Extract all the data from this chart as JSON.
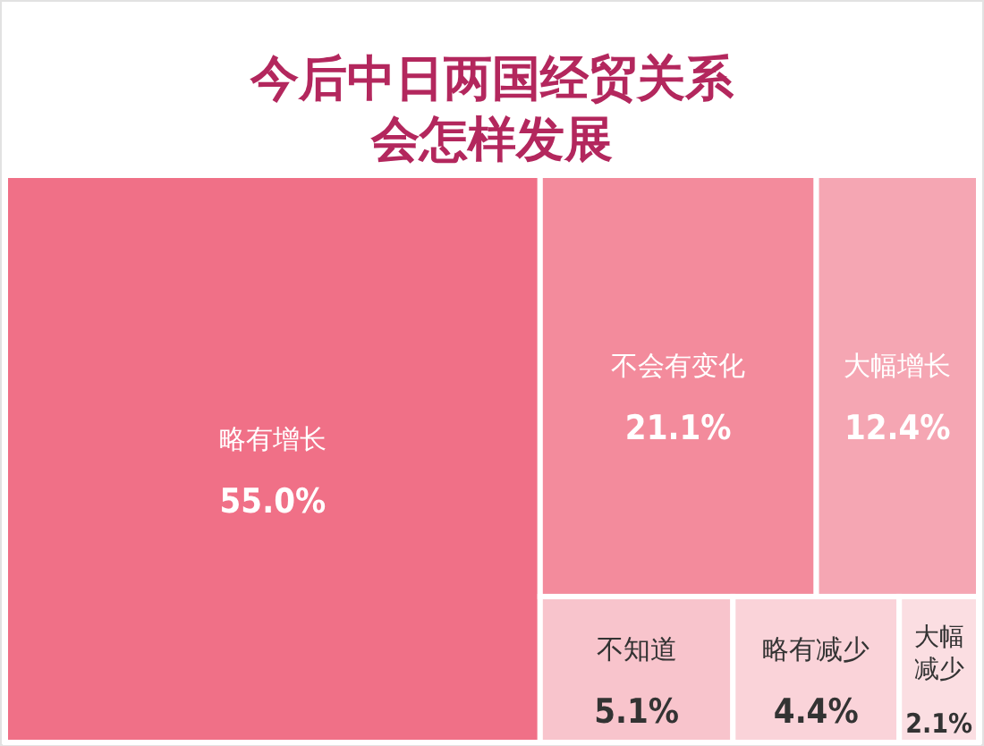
{
  "chart_data": {
    "type": "other",
    "title": "今后中日两国经贸关系会怎样发展",
    "categories": [
      "略有增长",
      "不会有变化",
      "大幅增长",
      "不知道",
      "略有减少",
      "大幅减少"
    ],
    "values": [
      55.0,
      21.1,
      12.4,
      5.1,
      4.4,
      2.1
    ],
    "value_labels": [
      "55.0%",
      "21.1%",
      "12.4%",
      "5.1%",
      "4.4%",
      "2.1%"
    ],
    "colors": [
      "#f07087",
      "#f38b9c",
      "#f5a6b3",
      "#f8c4cc",
      "#fad3d9",
      "#fbdee2"
    ]
  }
}
